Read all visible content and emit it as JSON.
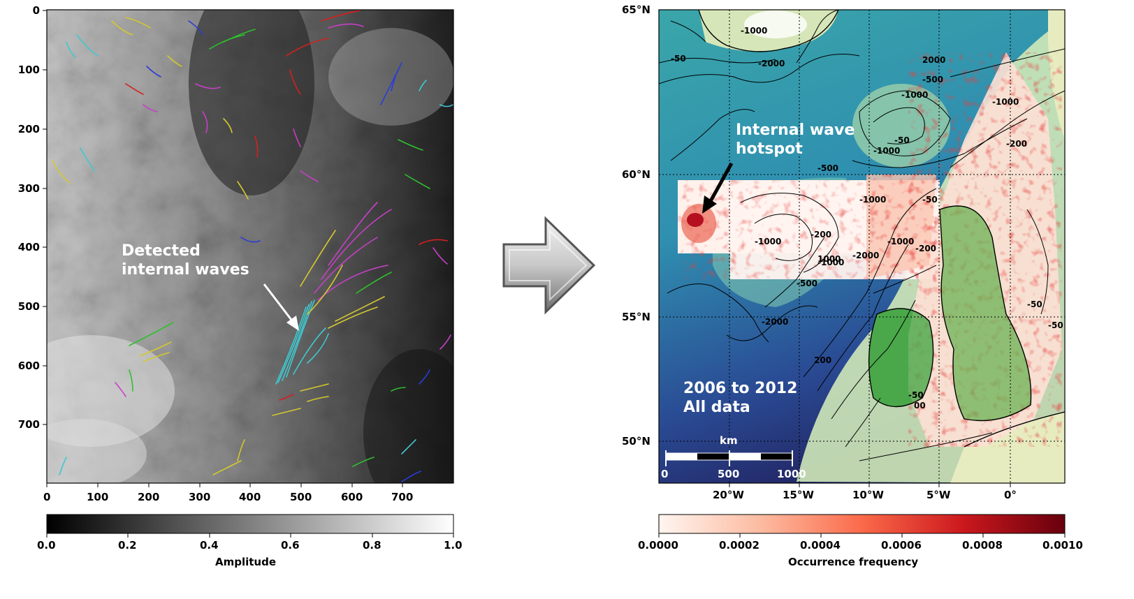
{
  "left_panel": {
    "annotation_line1": "Detected",
    "annotation_line2": "internal waves",
    "x_ticks": [
      "0",
      "100",
      "200",
      "300",
      "400",
      "500",
      "600",
      "700"
    ],
    "y_ticks": [
      "0",
      "100",
      "200",
      "300",
      "400",
      "500",
      "600",
      "700"
    ],
    "colorbar_ticks": [
      "0.0",
      "0.2",
      "0.4",
      "0.6",
      "0.8",
      "1.0"
    ],
    "colorbar_label": "Amplitude"
  },
  "right_panel": {
    "annotation_hotspot_line1": "Internal wave",
    "annotation_hotspot_line2": "hotspot",
    "annotation_period_line1": "2006 to 2012",
    "annotation_period_line2": "All data",
    "lat_ticks": [
      "65°N",
      "60°N",
      "55°N",
      "50°N"
    ],
    "lon_ticks": [
      "20°W",
      "15°W",
      "10°W",
      "5°W",
      "0°"
    ],
    "scale_unit": "km",
    "scale_ticks": [
      "0",
      "500",
      "1000"
    ],
    "contour_labels": [
      "-50",
      "-1000",
      "-2000",
      "-500",
      "-1000",
      "-50",
      "-1000",
      "-500",
      "-200",
      "-1000",
      "-200",
      "-1000",
      "-2000",
      "-500",
      "-1000",
      "-1000",
      "-200",
      "-2000",
      "-1000",
      "-50",
      "-50",
      "200",
      "1000",
      "-50",
      "-50",
      "2000",
      "00"
    ],
    "colorbar_ticks": [
      "0.0000",
      "0.0002",
      "0.0004",
      "0.0006",
      "0.0008",
      "0.0010"
    ],
    "colorbar_label": "Occurrence frequency",
    "colorbar_colors": [
      "#fff5f0",
      "#fcbba1",
      "#fb6a4a",
      "#cb181d",
      "#67000d"
    ]
  },
  "arrow_icon": "right-arrow-icon"
}
